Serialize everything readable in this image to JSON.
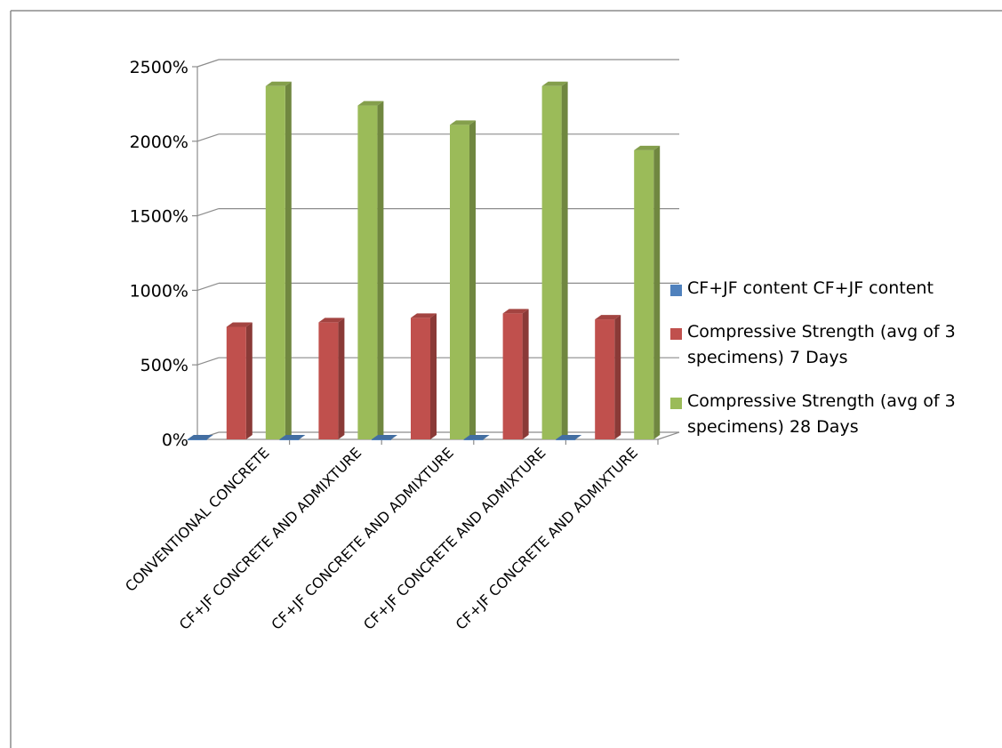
{
  "chart_data": {
    "type": "bar",
    "style": "3d-clustered-column",
    "title": "",
    "xlabel": "",
    "ylabel": "",
    "ylim": [
      0,
      2500
    ],
    "yticks": [
      0,
      500,
      1000,
      1500,
      2000,
      2500
    ],
    "ytick_labels": [
      "0%",
      "500%",
      "1000%",
      "1500%",
      "2000%",
      "2500%"
    ],
    "grid": true,
    "legend_position": "right",
    "categories": [
      "CONVENTIONAL CONCRETE",
      "CF+JF CONCRETE AND ADMIXTURE",
      "CF+JF CONCRETE AND ADMIXTURE",
      "CF+JF CONCRETE AND ADMIXTURE",
      "CF+JF CONCRETE AND ADMIXTURE"
    ],
    "series": [
      {
        "name": "CF+JF  content CF+JF  content",
        "color": "#4f81bd",
        "values": [
          0,
          0,
          0,
          0,
          0
        ]
      },
      {
        "name": "Compressive Strength (avg of 3 specimens) 7 Days",
        "color": "#c0504d",
        "values": [
          755,
          785,
          815,
          845,
          805
        ]
      },
      {
        "name": "Compressive Strength (avg of 3 specimens) 28 Days",
        "color": "#9bbb59",
        "values": [
          2370,
          2240,
          2110,
          2370,
          1940
        ]
      }
    ]
  }
}
